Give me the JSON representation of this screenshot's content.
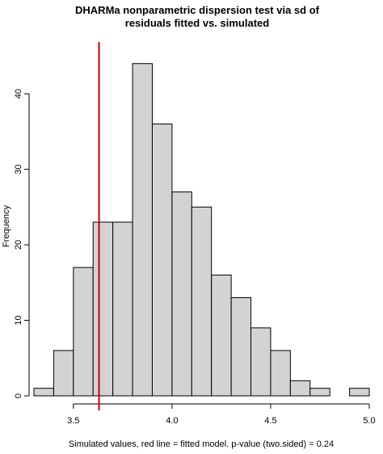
{
  "chart_data": {
    "type": "bar",
    "title_line1": "DHARMa nonparametric dispersion test via sd of",
    "title_line2": "residuals fitted vs. simulated",
    "xlabel": "Simulated values, red line = fitted model. p-value (two.sided) = 0.24",
    "ylabel": "Frequency",
    "bin_edges": [
      3.3,
      3.4,
      3.5,
      3.6,
      3.7,
      3.8,
      3.9,
      4.0,
      4.1,
      4.2,
      4.3,
      4.4,
      4.5,
      4.6,
      4.7,
      4.8,
      4.9,
      5.0
    ],
    "values": [
      1,
      6,
      17,
      23,
      23,
      44,
      36,
      27,
      25,
      16,
      13,
      9,
      6,
      2,
      1,
      0,
      1
    ],
    "observed_value": 3.63,
    "observed_color": "#cc0000",
    "bar_color": "#d3d3d3",
    "xlim": [
      3.3,
      5.0
    ],
    "ylim": [
      0,
      46
    ],
    "x_ticks": [
      3.5,
      4.0,
      4.5,
      5.0
    ],
    "x_tick_labels": [
      "3.5",
      "4.0",
      "4.5",
      "5.0"
    ],
    "y_ticks": [
      0,
      10,
      20,
      30,
      40
    ],
    "y_tick_labels": [
      "0",
      "10",
      "20",
      "30",
      "40"
    ],
    "grid": false
  }
}
